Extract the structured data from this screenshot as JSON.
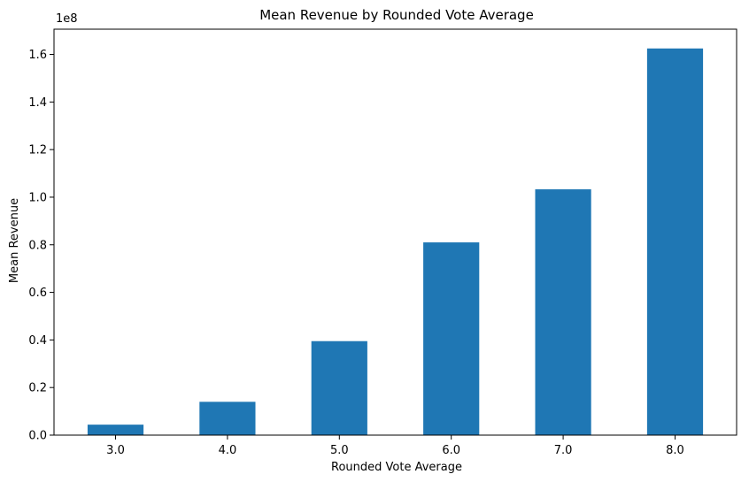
{
  "chart_data": {
    "type": "bar",
    "title": "Mean Revenue by Rounded Vote Average",
    "xlabel": "Rounded Vote Average",
    "ylabel": "Mean Revenue",
    "y_offset_label": "1e8",
    "categories": [
      "3.0",
      "4.0",
      "5.0",
      "6.0",
      "7.0",
      "8.0"
    ],
    "values": [
      4400000,
      14000000,
      39500000,
      81000000,
      103300000,
      162500000
    ],
    "y_ticks": [
      0,
      20000000,
      40000000,
      60000000,
      80000000,
      100000000,
      120000000,
      140000000,
      160000000
    ],
    "y_tick_labels": [
      "0.0",
      "0.2",
      "0.4",
      "0.6",
      "0.8",
      "1.0",
      "1.2",
      "1.4",
      "1.6"
    ],
    "ylim": [
      0,
      170600000
    ],
    "grid": false,
    "legend": "none",
    "bar_color": "#1f77b4"
  }
}
